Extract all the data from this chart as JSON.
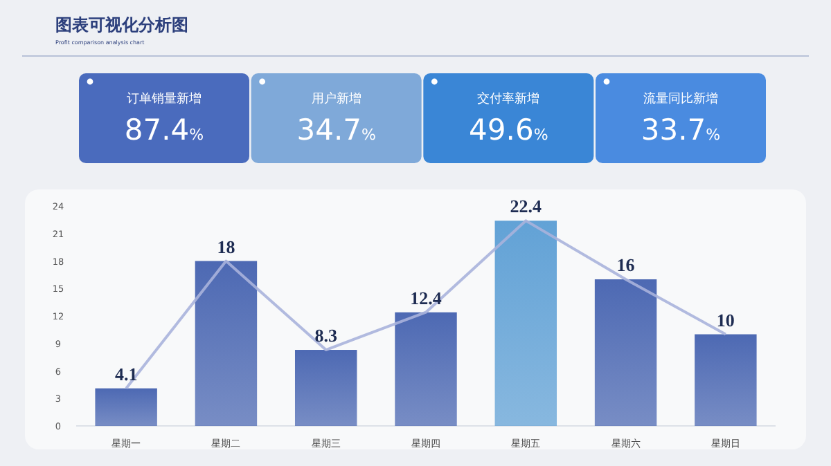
{
  "chart_data": [
    {
      "type": "other",
      "title": "图表可视化分析图",
      "subtitle": "Profit comparison analysis chart",
      "categories": [
        "订单销量新增",
        "用户新增",
        "交付率新增",
        "流量同比新增"
      ],
      "values": [
        87.4,
        34.7,
        49.6,
        33.7
      ],
      "value_labels": [
        "87.4%",
        "34.7%",
        "49.6%",
        "33.7%"
      ],
      "colors": [
        "#4a6bbd",
        "#7fa9d9",
        "#3a86d6",
        "#4a8be0"
      ]
    },
    {
      "type": "bar",
      "categories": [
        "星期一",
        "星期二",
        "星期三",
        "星期四",
        "星期五",
        "星期六",
        "星期日"
      ],
      "ylim": [
        0,
        24
      ],
      "yticks": [
        0,
        3,
        6,
        9,
        12,
        15,
        18,
        21,
        24
      ],
      "series": [
        {
          "type": "bar",
          "colors": [
            "#4d69b3",
            "#4d69b3",
            "#4d69b3",
            "#4d69b3",
            "#62a2d6",
            "#4d69b3",
            "#4d69b3"
          ],
          "values": [
            4.1,
            18,
            8.3,
            12.4,
            22.4,
            16,
            10
          ],
          "value_labels": [
            "4.1",
            "18",
            "8.3",
            "12.4",
            "22.4",
            "16",
            "10"
          ]
        },
        {
          "type": "line",
          "color": "#a9b3db",
          "values": [
            4.1,
            18,
            8.3,
            12.4,
            22.4,
            16,
            10
          ]
        }
      ]
    }
  ]
}
